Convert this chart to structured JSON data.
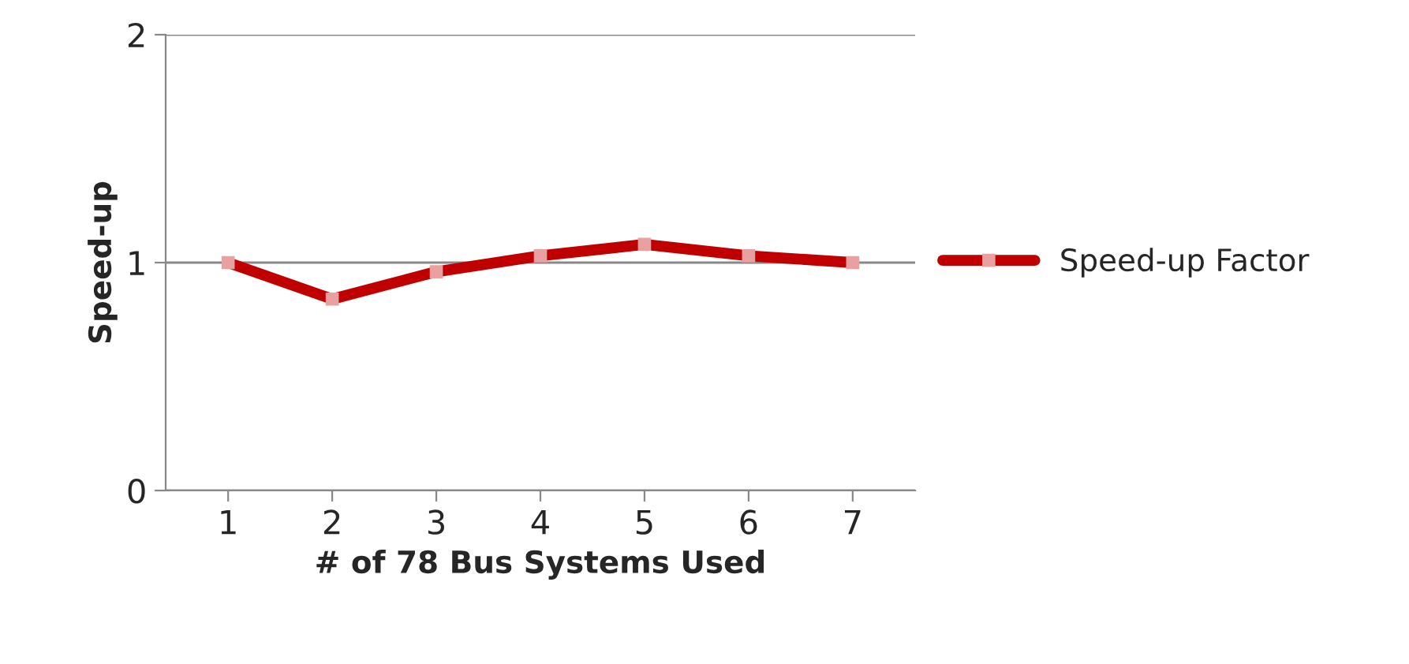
{
  "chart_data": {
    "type": "line",
    "xlabel": "# of 78 Bus Systems Used",
    "ylabel": "Speed-up",
    "categories": [
      "1",
      "2",
      "3",
      "4",
      "5",
      "6",
      "7"
    ],
    "series": [
      {
        "name": "Speed-up Factor",
        "color": "#c00000",
        "values": [
          1.0,
          0.84,
          0.96,
          1.03,
          1.08,
          1.03,
          1.0
        ]
      }
    ],
    "ylim": [
      0,
      2
    ],
    "yticks": [
      0,
      1,
      2
    ],
    "grid": "y",
    "legend": "right",
    "marker": "square"
  }
}
